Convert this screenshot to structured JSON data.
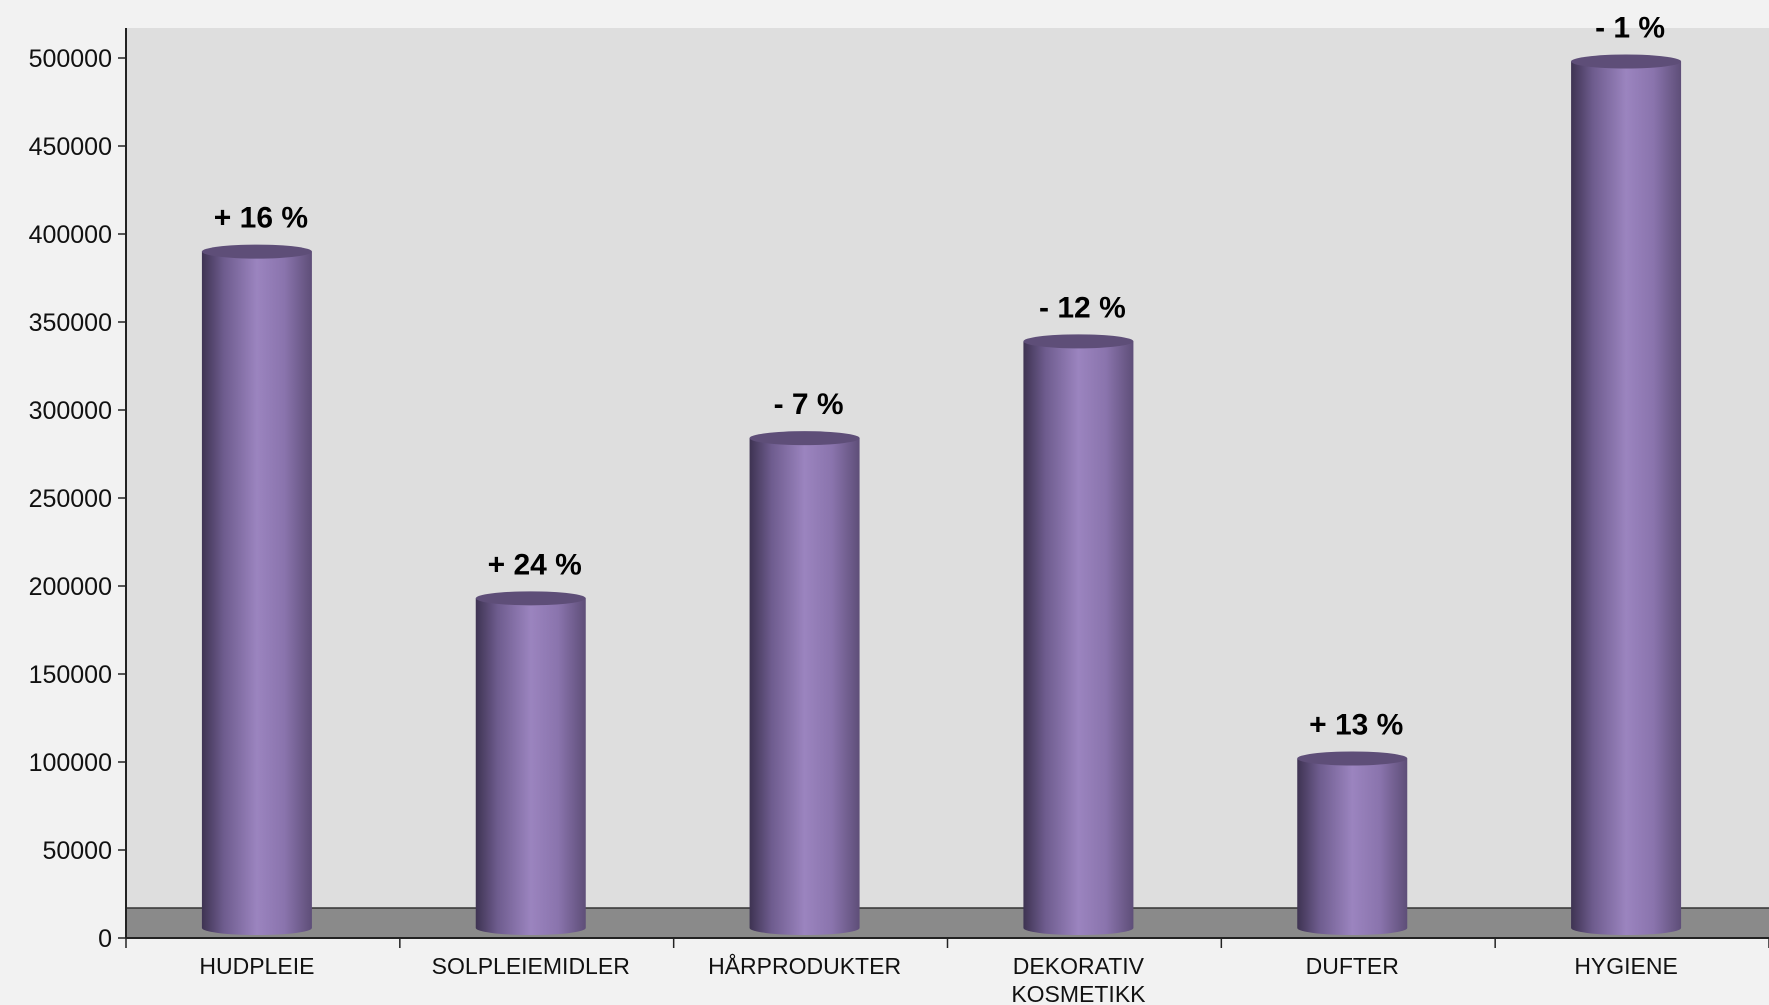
{
  "chart_data": {
    "type": "bar",
    "title": "",
    "xlabel": "",
    "ylabel": "",
    "ylim": [
      0,
      500000
    ],
    "yticks": [
      0,
      50000,
      100000,
      150000,
      200000,
      250000,
      300000,
      350000,
      400000,
      450000,
      500000
    ],
    "categories": [
      [
        "HUDPLEIE"
      ],
      [
        "SOLPLEIEMIDLER"
      ],
      [
        "HÅRPRODUKTER"
      ],
      [
        "DEKORATIV",
        "KOSMETIKK"
      ],
      [
        "DUFTER"
      ],
      [
        "HYGIENE"
      ]
    ],
    "values": [
      390000,
      193000,
      284000,
      339000,
      102000,
      498000
    ],
    "data_labels": [
      "+ 16 %",
      "+ 24 %",
      "- 7 %",
      "- 12 %",
      "+ 13 %",
      "- 1 %"
    ],
    "grid": false,
    "legend": "none",
    "style": "3d-cylinder",
    "colors": {
      "bar_light": "#9b84bf",
      "bar_dark": "#3e3352",
      "bar_top": "#5e4e78",
      "plot_background": "#dedede",
      "floor": "#8a8a8a",
      "page_background": "#f2f2f2"
    }
  }
}
